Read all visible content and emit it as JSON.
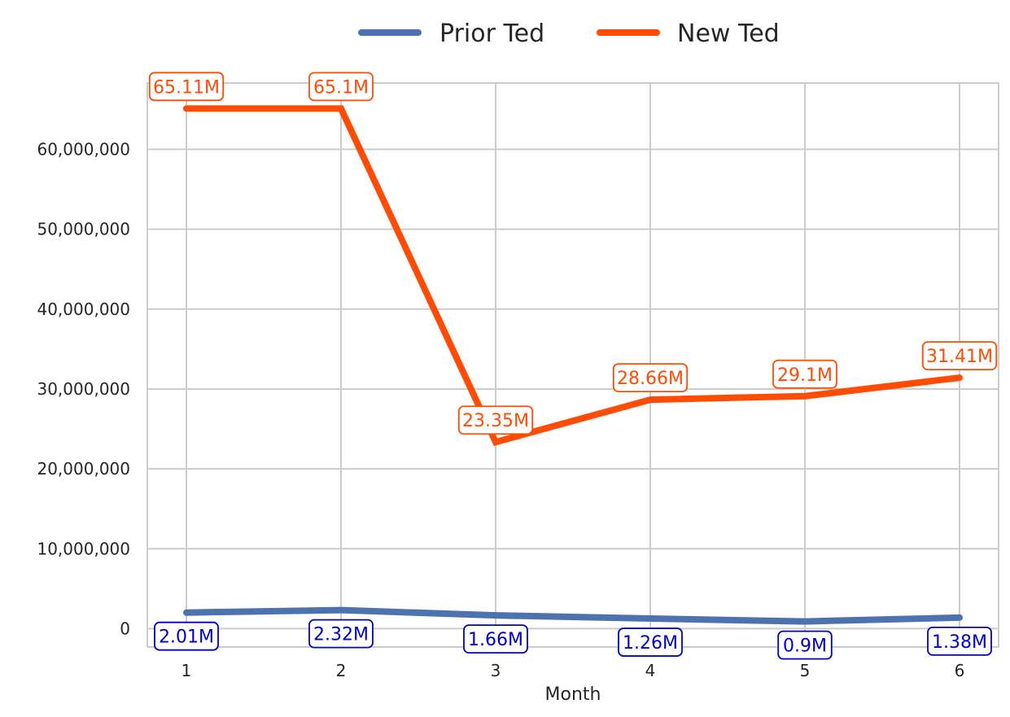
{
  "chart_data": {
    "type": "line",
    "title": "",
    "xlabel": "Month",
    "ylabel": "",
    "x": [
      1,
      2,
      3,
      4,
      5,
      6
    ],
    "x_tick_labels": [
      "1",
      "2",
      "3",
      "4",
      "5",
      "6"
    ],
    "ylim": [
      -2300000,
      68300000
    ],
    "y_ticks": [
      0,
      10000000,
      20000000,
      30000000,
      40000000,
      50000000,
      60000000
    ],
    "y_tick_labels": [
      "0",
      "10,000,000",
      "20,000,000",
      "30,000,000",
      "40,000,000",
      "50,000,000",
      "60,000,000"
    ],
    "grid": true,
    "legend_position": "top-center",
    "series": [
      {
        "name": "Prior Ted",
        "color": "#4c72b0",
        "label_color": "#0000cc",
        "label_position": "below",
        "values": [
          2010000,
          2320000,
          1660000,
          1260000,
          900000,
          1380000
        ],
        "labels": [
          "2.01M",
          "2.32M",
          "1.66M",
          "1.26M",
          "0.9M",
          "1.38M"
        ]
      },
      {
        "name": "New Ted",
        "color": "#ff4c05",
        "label_color": "#ff4c05",
        "label_position": "above",
        "values": [
          65110000,
          65100000,
          23350000,
          28660000,
          29100000,
          31410000
        ],
        "labels": [
          "65.11M",
          "65.1M",
          "23.35M",
          "28.66M",
          "29.1M",
          "31.41M"
        ]
      }
    ]
  }
}
